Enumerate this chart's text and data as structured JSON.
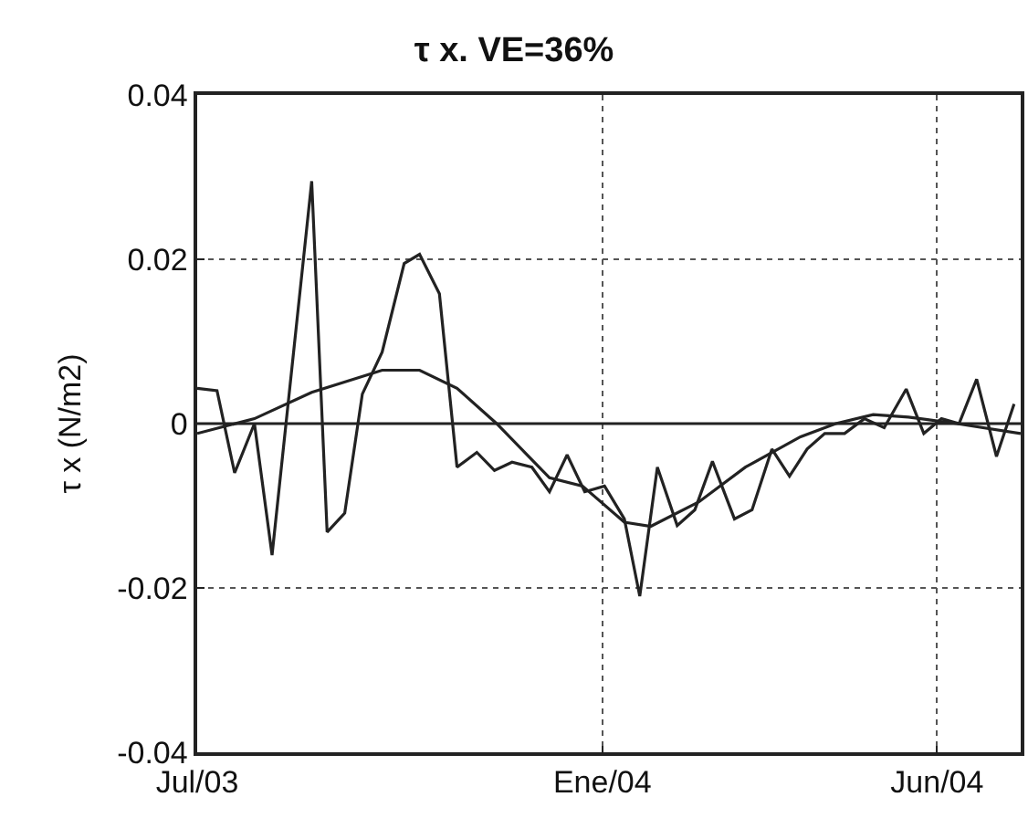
{
  "chart_data": {
    "type": "line",
    "title": "τ x. VE=36%",
    "ylabel": "τ x (N/m2)",
    "series": [
      {
        "color": "#222222",
        "x": [
          "2003-07-01",
          "2003-07-10",
          "2003-07-18",
          "2003-07-27",
          "2003-08-04",
          "2003-08-22",
          "2003-08-29",
          "2003-09-06",
          "2003-09-14",
          "2003-09-23",
          "2003-10-03",
          "2003-10-10",
          "2003-10-19",
          "2003-10-27",
          "2003-11-05",
          "2003-11-13",
          "2003-11-21",
          "2003-11-30",
          "2003-12-08",
          "2003-12-16",
          "2003-12-24",
          "2004-01-02",
          "2004-01-11",
          "2004-01-18",
          "2004-01-26",
          "2004-02-04",
          "2004-02-12",
          "2004-02-20",
          "2004-03-01",
          "2004-03-09",
          "2004-03-18",
          "2004-03-26",
          "2004-04-03",
          "2004-04-11",
          "2004-04-20",
          "2004-04-29",
          "2004-05-08",
          "2004-05-18",
          "2004-05-26",
          "2004-06-03",
          "2004-06-11",
          "2004-06-19",
          "2004-06-28",
          "2004-07-06"
        ],
        "values": [
          0.0043,
          0.004,
          -0.006,
          0,
          -0.016,
          0.0295,
          -0.0132,
          -0.0109,
          0.0036,
          0.0087,
          0.0195,
          0.0206,
          0.0158,
          -0.0053,
          -0.0035,
          -0.0057,
          -0.0047,
          -0.0053,
          -0.0083,
          -0.0038,
          -0.0083,
          -0.0076,
          -0.0116,
          -0.021,
          -0.0053,
          -0.0124,
          -0.0105,
          -0.0046,
          -0.0116,
          -0.0105,
          -0.0031,
          -0.0064,
          -0.0031,
          -0.0012,
          -0.0012,
          0.0006,
          -0.0005,
          0.0042,
          -0.0012,
          0.0006,
          0,
          0.0054,
          -0.004,
          0.0024
        ]
      },
      {
        "color": "#222222",
        "x": [
          "2003-07-01",
          "2003-07-27",
          "2003-08-22",
          "2003-09-23",
          "2003-10-10",
          "2003-10-27",
          "2003-11-14",
          "2003-12-08",
          "2003-12-23",
          "2004-01-11",
          "2004-01-23",
          "2004-02-14",
          "2004-03-06",
          "2004-03-31",
          "2004-04-16",
          "2004-05-03",
          "2004-05-19",
          "2004-06-10",
          "2004-07-09"
        ],
        "values": [
          -0.0012,
          0.0006,
          0.0038,
          0.0065,
          0.0065,
          0.0043,
          0,
          -0.0066,
          -0.0076,
          -0.012,
          -0.0125,
          -0.0095,
          -0.0053,
          -0.0016,
          0,
          0.0011,
          0.0008,
          0,
          -0.0012
        ]
      }
    ],
    "xlim": [
      "2003-07-01",
      "2004-07-09"
    ],
    "xticks": [
      {
        "value": "2003-07-01",
        "label": "Jul/03"
      },
      {
        "value": "2004-01-01",
        "label": "Ene/04"
      },
      {
        "value": "2004-06-01",
        "label": "Jun/04"
      }
    ],
    "ylim": [
      -0.04,
      0.04
    ],
    "yticks": [
      -0.04,
      -0.02,
      0,
      0.02,
      0.04
    ],
    "ref_lines": [
      {
        "axis": "y",
        "value": 0,
        "color": "#222222",
        "line_style": "solid"
      }
    ],
    "grid": true,
    "marker": "none",
    "line_style": "solid"
  }
}
